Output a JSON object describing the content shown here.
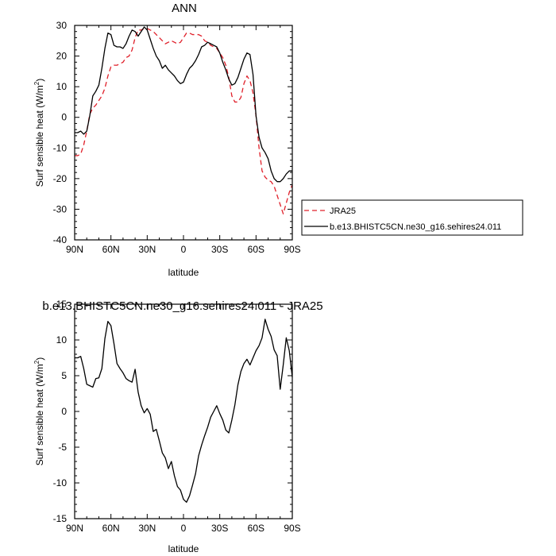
{
  "chart_data": [
    {
      "type": "line",
      "title": "ANN",
      "xlabel": "latitude",
      "ylabel": "Surf sensible heat (W/m²)",
      "ylabel_main": "Surf sensible heat (W/m",
      "ylabel_sup": "2",
      "ylabel_close": ")",
      "xlim": [
        90,
        -90
      ],
      "ylim": [
        -40,
        30
      ],
      "x_ticks": [
        90,
        60,
        30,
        0,
        -30,
        -60,
        -90
      ],
      "x_tick_labels": [
        "90N",
        "60N",
        "30N",
        "0",
        "30S",
        "60S",
        "90S"
      ],
      "y_ticks": [
        30,
        20,
        10,
        0,
        -10,
        -20,
        -30,
        -40
      ],
      "y_tick_labels": [
        "30",
        "20",
        "10",
        "0",
        "-10",
        "-20",
        "-30",
        "-40"
      ],
      "legend": {
        "placement": "right",
        "entries": [
          "JRA25",
          "b.e13.BHISTC5CN.ne30_g16.sehires24.011"
        ]
      },
      "series": [
        {
          "name": "JRA25",
          "color": "#e0202a",
          "dash": "dashed",
          "x": [
            90,
            87.5,
            85,
            82.5,
            80,
            77.5,
            75,
            72.5,
            70,
            67.5,
            65,
            62.5,
            60,
            57.5,
            55,
            52.5,
            50,
            47.5,
            45,
            42.5,
            40,
            37.5,
            35,
            32.5,
            30,
            27.5,
            25,
            22.5,
            20,
            17.5,
            15,
            12.5,
            10,
            7.5,
            5,
            2.5,
            0,
            -2.5,
            -5,
            -7.5,
            -10,
            -12.5,
            -15,
            -17.5,
            -20,
            -22.5,
            -25,
            -27.5,
            -30,
            -32.5,
            -35,
            -37.5,
            -40,
            -42.5,
            -45,
            -47.5,
            -50,
            -52.5,
            -55,
            -57.5,
            -60,
            -62.5,
            -65,
            -67.5,
            -70,
            -72.5,
            -75,
            -77.5,
            -80,
            -82.5,
            -85,
            -87.5,
            -90
          ],
          "values": [
            -12.5,
            -12.5,
            -12.0,
            -9.0,
            -4.5,
            1.0,
            3.0,
            4.0,
            5.5,
            7.0,
            9.5,
            13.5,
            16.5,
            17.0,
            17.0,
            17.5,
            18.0,
            19.5,
            20.0,
            22.0,
            26.0,
            28.5,
            28.5,
            29.0,
            29.0,
            28.5,
            28.0,
            27.0,
            26.0,
            25.0,
            24.0,
            24.5,
            25.0,
            24.5,
            24.0,
            24.5,
            26.0,
            27.5,
            27.5,
            27.0,
            27.0,
            27.0,
            26.5,
            25.0,
            24.5,
            23.5,
            23.0,
            22.5,
            21.0,
            19.5,
            17.0,
            13.0,
            7.0,
            5.0,
            5.0,
            6.5,
            11.0,
            13.5,
            12.0,
            8.0,
            0.5,
            -10.0,
            -17.5,
            -19.5,
            -20.5,
            -21.0,
            -22.5,
            -25.5,
            -28.5,
            -31.5,
            -28.0,
            -24.5,
            -22.0
          ]
        },
        {
          "name": "b.e13.BHISTC5CN.ne30_g16.sehires24.011",
          "color": "#000000",
          "dash": "solid",
          "x": [
            90,
            87.5,
            85,
            82.5,
            80,
            77.5,
            75,
            72.5,
            70,
            67.5,
            65,
            62.5,
            60,
            57.5,
            55,
            52.5,
            50,
            47.5,
            45,
            42.5,
            40,
            37.5,
            35,
            32.5,
            30,
            27.5,
            25,
            22.5,
            20,
            17.5,
            15,
            12.5,
            10,
            7.5,
            5,
            2.5,
            0,
            -2.5,
            -5,
            -7.5,
            -10,
            -12.5,
            -15,
            -17.5,
            -20,
            -22.5,
            -25,
            -27.5,
            -30,
            -32.5,
            -35,
            -37.5,
            -40,
            -42.5,
            -45,
            -47.5,
            -50,
            -52.5,
            -55,
            -57.5,
            -60,
            -62.5,
            -65,
            -67.5,
            -70,
            -72.5,
            -75,
            -77.5,
            -80,
            -82.5,
            -85,
            -87.5,
            -90
          ],
          "values": [
            -5.0,
            -5.0,
            -4.5,
            -5.5,
            -4.5,
            0.5,
            7.0,
            8.5,
            10.5,
            16.0,
            22.5,
            27.5,
            27.0,
            23.5,
            23.0,
            23.0,
            22.5,
            24.0,
            26.5,
            28.5,
            28.0,
            26.5,
            28.0,
            29.5,
            28.5,
            25.5,
            22.5,
            20.0,
            18.5,
            16.0,
            17.0,
            15.5,
            14.5,
            13.5,
            12.0,
            11.0,
            11.5,
            14.0,
            16.0,
            17.0,
            18.5,
            20.5,
            23.0,
            23.5,
            24.5,
            24.0,
            23.5,
            23.0,
            21.0,
            18.0,
            15.5,
            12.5,
            10.5,
            11.0,
            13.0,
            16.0,
            19.0,
            21.0,
            20.5,
            14.0,
            0.5,
            -6.5,
            -10.0,
            -11.5,
            -13.5,
            -17.5,
            -20.0,
            -21.0,
            -21.0,
            -20.0,
            -18.5,
            -17.5,
            -17.5
          ]
        }
      ]
    },
    {
      "type": "line",
      "title": "b.e13.BHISTC5CN.ne30_g16.sehires24.011 - JRA25",
      "xlabel": "latitude",
      "ylabel": "Surf sensible heat (W/m²)",
      "ylabel_main": "Surf sensible heat (W/m",
      "ylabel_sup": "2",
      "ylabel_close": ")",
      "xlim": [
        90,
        -90
      ],
      "ylim": [
        -15,
        15
      ],
      "x_ticks": [
        90,
        60,
        30,
        0,
        -30,
        -60,
        -90
      ],
      "x_tick_labels": [
        "90N",
        "60N",
        "30N",
        "0",
        "30S",
        "60S",
        "90S"
      ],
      "y_ticks": [
        15,
        10,
        5,
        0,
        -5,
        -10,
        -15
      ],
      "y_tick_labels": [
        "15",
        "10",
        "5",
        "0",
        "-5",
        "-10",
        "-15"
      ],
      "series": [
        {
          "color": "#000000",
          "dash": "solid",
          "x": [
            90,
            87.5,
            85,
            82.5,
            80,
            77.5,
            75,
            72.5,
            70,
            67.5,
            65,
            62.5,
            60,
            57.5,
            55,
            52.5,
            50,
            47.5,
            45,
            42.5,
            40,
            37.5,
            35,
            32.5,
            30,
            27.5,
            25,
            22.5,
            20,
            17.5,
            15,
            12.5,
            10,
            7.5,
            5,
            2.5,
            0,
            -2.5,
            -5,
            -7.5,
            -10,
            -12.5,
            -15,
            -17.5,
            -20,
            -22.5,
            -25,
            -27.5,
            -30,
            -32.5,
            -35,
            -37.5,
            -40,
            -42.5,
            -45,
            -47.5,
            -50,
            -52.5,
            -55,
            -57.5,
            -60,
            -62.5,
            -65,
            -67.5,
            -70,
            -72.5,
            -75,
            -77.5,
            -80,
            -82.5,
            -85,
            -87.5,
            -90
          ],
          "values": [
            7.5,
            7.5,
            7.7,
            6.0,
            3.8,
            3.6,
            3.4,
            4.6,
            4.7,
            6.0,
            10.2,
            12.6,
            12.0,
            9.5,
            6.7,
            6.0,
            5.4,
            4.6,
            4.3,
            4.1,
            5.9,
            2.7,
            0.8,
            -0.2,
            0.4,
            -0.4,
            -2.8,
            -2.5,
            -4.1,
            -5.8,
            -6.5,
            -8.0,
            -7.0,
            -9.0,
            -10.5,
            -11.0,
            -12.3,
            -12.7,
            -11.8,
            -10.3,
            -8.7,
            -6.2,
            -4.7,
            -3.4,
            -2.2,
            -0.8,
            0.0,
            0.8,
            -0.3,
            -1.2,
            -2.6,
            -3.0,
            -1.2,
            0.9,
            3.7,
            5.6,
            6.7,
            7.3,
            6.5,
            7.5,
            8.5,
            9.2,
            10.3,
            12.9,
            11.5,
            10.5,
            8.6,
            7.8,
            3.1,
            6.5,
            10.3,
            8.5,
            4.8
          ]
        }
      ]
    }
  ]
}
